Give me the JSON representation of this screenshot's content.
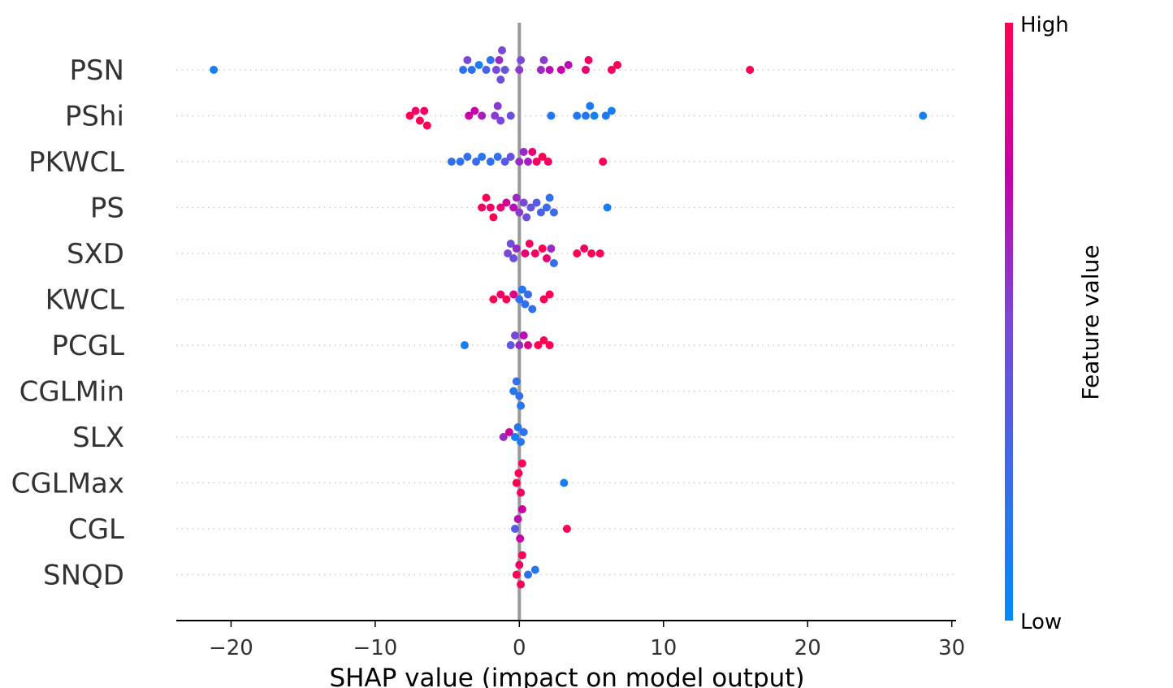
{
  "chart_data": {
    "type": "scatter",
    "subtype": "shap-beeswarm",
    "xlabel": "SHAP value (impact on model output)",
    "xlim": [
      -23.8,
      30.3
    ],
    "xticks": [
      -20,
      -10,
      0,
      10,
      20,
      30
    ],
    "xtick_labels": [
      "−20",
      "−10",
      "0",
      "10",
      "20",
      "30"
    ],
    "zero_line": 0,
    "colorbar": {
      "title": "Feature value",
      "high_label": "High",
      "low_label": "Low",
      "low_color": "#008bfb",
      "high_color": "#ff0052"
    },
    "features": [
      {
        "name": "PSN",
        "points": [
          [
            -21.2,
            0.1
          ],
          [
            -3.9,
            0.2
          ],
          [
            -3.6,
            0.5
          ],
          [
            -3.3,
            0.2
          ],
          [
            -2.8,
            0.1
          ],
          [
            -2.3,
            0.3
          ],
          [
            -2.0,
            0.2
          ],
          [
            -1.6,
            0.5
          ],
          [
            -1.4,
            0.6
          ],
          [
            -1.3,
            0.45
          ],
          [
            -1.2,
            0.5
          ],
          [
            -1.0,
            0.4
          ],
          [
            0.0,
            0.55
          ],
          [
            0.1,
            0.5
          ],
          [
            1.5,
            0.6
          ],
          [
            1.7,
            0.55
          ],
          [
            2.1,
            0.7
          ],
          [
            2.9,
            0.75
          ],
          [
            3.4,
            0.7
          ],
          [
            4.6,
            0.9
          ],
          [
            4.8,
            0.95
          ],
          [
            6.4,
            0.95
          ],
          [
            6.8,
            1.0
          ],
          [
            16.0,
            1.0
          ]
        ]
      },
      {
        "name": "PShi",
        "points": [
          [
            -7.6,
            1.0
          ],
          [
            -7.2,
            0.95
          ],
          [
            -6.9,
            1.0
          ],
          [
            -6.6,
            0.95
          ],
          [
            -6.4,
            1.0
          ],
          [
            -3.5,
            0.75
          ],
          [
            -3.1,
            0.75
          ],
          [
            -2.6,
            0.65
          ],
          [
            -1.7,
            0.55
          ],
          [
            -1.5,
            0.55
          ],
          [
            -1.3,
            0.5
          ],
          [
            -0.6,
            0.45
          ],
          [
            2.2,
            0.15
          ],
          [
            4.0,
            0.15
          ],
          [
            4.6,
            0.15
          ],
          [
            4.9,
            0.15
          ],
          [
            5.2,
            0.1
          ],
          [
            6.0,
            0.15
          ],
          [
            6.4,
            0.1
          ],
          [
            28.0,
            0.1
          ]
        ]
      },
      {
        "name": "PKWCL",
        "points": [
          [
            -4.7,
            0.2
          ],
          [
            -4.1,
            0.2
          ],
          [
            -3.6,
            0.2
          ],
          [
            -3.0,
            0.25
          ],
          [
            -2.6,
            0.15
          ],
          [
            -2.0,
            0.2
          ],
          [
            -1.5,
            0.2
          ],
          [
            -1.0,
            0.35
          ],
          [
            -0.6,
            0.4
          ],
          [
            0.0,
            0.6
          ],
          [
            0.3,
            0.6
          ],
          [
            0.6,
            0.65
          ],
          [
            0.9,
            0.9
          ],
          [
            1.2,
            0.95
          ],
          [
            1.6,
            1.0
          ],
          [
            2.0,
            0.95
          ],
          [
            5.8,
            1.0
          ]
        ]
      },
      {
        "name": "PS",
        "points": [
          [
            -2.6,
            0.95
          ],
          [
            -2.3,
            1.0
          ],
          [
            -2.0,
            0.95
          ],
          [
            -1.8,
            1.0
          ],
          [
            -1.3,
            0.9
          ],
          [
            -0.9,
            0.8
          ],
          [
            -0.4,
            0.7
          ],
          [
            -0.2,
            0.6
          ],
          [
            0.0,
            0.55
          ],
          [
            0.3,
            0.5
          ],
          [
            0.5,
            0.45
          ],
          [
            0.8,
            0.4
          ],
          [
            1.2,
            0.35
          ],
          [
            1.5,
            0.3
          ],
          [
            1.9,
            0.25
          ],
          [
            2.1,
            0.2
          ],
          [
            2.4,
            0.25
          ],
          [
            6.1,
            0.1
          ]
        ]
      },
      {
        "name": "SXD",
        "points": [
          [
            -0.8,
            0.5
          ],
          [
            -0.6,
            0.45
          ],
          [
            -0.4,
            0.45
          ],
          [
            -0.2,
            0.6
          ],
          [
            0.4,
            0.9
          ],
          [
            0.7,
            0.95
          ],
          [
            1.1,
            0.95
          ],
          [
            1.6,
            1.0
          ],
          [
            1.9,
            0.9
          ],
          [
            2.2,
            0.6
          ],
          [
            2.4,
            0.2
          ],
          [
            4.0,
            1.0
          ],
          [
            4.5,
            0.95
          ],
          [
            5.0,
            1.0
          ],
          [
            5.6,
            1.0
          ]
        ]
      },
      {
        "name": "KWCL",
        "points": [
          [
            -1.8,
            1.0
          ],
          [
            -1.3,
            0.95
          ],
          [
            -0.9,
            1.0
          ],
          [
            -0.4,
            0.85
          ],
          [
            0.0,
            0.2
          ],
          [
            0.2,
            0.15
          ],
          [
            0.4,
            0.2
          ],
          [
            0.6,
            0.25
          ],
          [
            0.9,
            0.2
          ],
          [
            1.7,
            1.0
          ],
          [
            2.1,
            1.0
          ]
        ]
      },
      {
        "name": "PCGL",
        "points": [
          [
            -3.8,
            0.1
          ],
          [
            -0.6,
            0.4
          ],
          [
            -0.3,
            0.5
          ],
          [
            0.0,
            0.6
          ],
          [
            0.3,
            0.7
          ],
          [
            0.6,
            0.85
          ],
          [
            1.3,
            1.0
          ],
          [
            1.7,
            1.0
          ],
          [
            2.1,
            1.0
          ]
        ]
      },
      {
        "name": "CGLMin",
        "points": [
          [
            -0.4,
            0.15
          ],
          [
            -0.2,
            0.2
          ],
          [
            0.0,
            0.2
          ],
          [
            0.1,
            0.15
          ]
        ]
      },
      {
        "name": "SLX",
        "points": [
          [
            -1.1,
            0.6
          ],
          [
            -0.7,
            0.8
          ],
          [
            -0.3,
            0.1
          ],
          [
            -0.1,
            0.15
          ],
          [
            0.1,
            0.15
          ],
          [
            0.3,
            0.2
          ]
        ]
      },
      {
        "name": "CGLMax",
        "points": [
          [
            -0.2,
            1.0
          ],
          [
            -0.05,
            1.0
          ],
          [
            0.1,
            0.95
          ],
          [
            0.2,
            1.0
          ],
          [
            3.1,
            0.1
          ]
        ]
      },
      {
        "name": "CGL",
        "points": [
          [
            -0.3,
            0.35
          ],
          [
            -0.1,
            0.7
          ],
          [
            0.05,
            0.75
          ],
          [
            0.2,
            0.75
          ],
          [
            3.3,
            1.0
          ]
        ]
      },
      {
        "name": "SNQD",
        "points": [
          [
            -0.2,
            1.0
          ],
          [
            0.0,
            0.95
          ],
          [
            0.1,
            1.0
          ],
          [
            0.2,
            1.0
          ],
          [
            0.6,
            0.2
          ],
          [
            1.1,
            0.15
          ]
        ]
      }
    ]
  }
}
